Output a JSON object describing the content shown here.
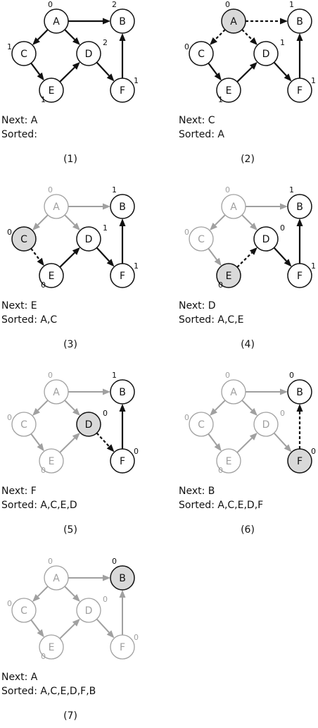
{
  "panels": [
    {
      "caption": "(1)",
      "next_label": "Next: A",
      "sorted_label": "Sorted:",
      "nodes": {
        "A": {
          "label": "A",
          "degree": "0",
          "style": "normal"
        },
        "B": {
          "label": "B",
          "degree": "2",
          "style": "normal"
        },
        "C": {
          "label": "C",
          "degree": "1",
          "style": "normal"
        },
        "D": {
          "label": "D",
          "degree": "2",
          "style": "normal"
        },
        "E": {
          "label": "E",
          "degree": "1",
          "style": "normal"
        },
        "F": {
          "label": "F",
          "degree": "1",
          "style": "normal"
        }
      },
      "edges": [
        {
          "from": "A",
          "to": "B",
          "style": "solid"
        },
        {
          "from": "A",
          "to": "C",
          "style": "solid"
        },
        {
          "from": "A",
          "to": "D",
          "style": "solid"
        },
        {
          "from": "C",
          "to": "E",
          "style": "solid"
        },
        {
          "from": "E",
          "to": "D",
          "style": "solid"
        },
        {
          "from": "D",
          "to": "F",
          "style": "solid"
        },
        {
          "from": "F",
          "to": "B",
          "style": "solid"
        }
      ]
    },
    {
      "caption": "(2)",
      "next_label": "Next: C",
      "sorted_label": "Sorted: A",
      "nodes": {
        "A": {
          "label": "A",
          "degree": "0",
          "style": "current"
        },
        "B": {
          "label": "B",
          "degree": "1",
          "style": "normal"
        },
        "C": {
          "label": "C",
          "degree": "0",
          "style": "normal"
        },
        "D": {
          "label": "D",
          "degree": "1",
          "style": "normal"
        },
        "E": {
          "label": "E",
          "degree": "1",
          "style": "normal"
        },
        "F": {
          "label": "F",
          "degree": "1",
          "style": "normal"
        }
      },
      "edges": [
        {
          "from": "A",
          "to": "B",
          "style": "dashed"
        },
        {
          "from": "A",
          "to": "C",
          "style": "dashed"
        },
        {
          "from": "A",
          "to": "D",
          "style": "dashed"
        },
        {
          "from": "C",
          "to": "E",
          "style": "solid"
        },
        {
          "from": "E",
          "to": "D",
          "style": "solid"
        },
        {
          "from": "D",
          "to": "F",
          "style": "solid"
        },
        {
          "from": "F",
          "to": "B",
          "style": "solid"
        }
      ]
    },
    {
      "caption": "(3)",
      "next_label": "Next: E",
      "sorted_label": "Sorted: A,C",
      "nodes": {
        "A": {
          "label": "A",
          "degree": "0",
          "style": "done"
        },
        "B": {
          "label": "B",
          "degree": "1",
          "style": "normal"
        },
        "C": {
          "label": "C",
          "degree": "0",
          "style": "current"
        },
        "D": {
          "label": "D",
          "degree": "1",
          "style": "normal"
        },
        "E": {
          "label": "E",
          "degree": "0",
          "style": "normal"
        },
        "F": {
          "label": "F",
          "degree": "1",
          "style": "normal"
        }
      },
      "edges": [
        {
          "from": "A",
          "to": "B",
          "style": "done"
        },
        {
          "from": "A",
          "to": "C",
          "style": "done"
        },
        {
          "from": "A",
          "to": "D",
          "style": "done"
        },
        {
          "from": "C",
          "to": "E",
          "style": "dashed"
        },
        {
          "from": "E",
          "to": "D",
          "style": "solid"
        },
        {
          "from": "D",
          "to": "F",
          "style": "solid"
        },
        {
          "from": "F",
          "to": "B",
          "style": "solid"
        }
      ]
    },
    {
      "caption": "(4)",
      "next_label": "Next: D",
      "sorted_label": "Sorted: A,C,E",
      "nodes": {
        "A": {
          "label": "A",
          "degree": "0",
          "style": "done"
        },
        "B": {
          "label": "B",
          "degree": "1",
          "style": "normal"
        },
        "C": {
          "label": "C",
          "degree": "0",
          "style": "done"
        },
        "D": {
          "label": "D",
          "degree": "0",
          "style": "normal"
        },
        "E": {
          "label": "E",
          "degree": "0",
          "style": "current"
        },
        "F": {
          "label": "F",
          "degree": "1",
          "style": "normal"
        }
      },
      "edges": [
        {
          "from": "A",
          "to": "B",
          "style": "done"
        },
        {
          "from": "A",
          "to": "C",
          "style": "done"
        },
        {
          "from": "A",
          "to": "D",
          "style": "done"
        },
        {
          "from": "C",
          "to": "E",
          "style": "done"
        },
        {
          "from": "E",
          "to": "D",
          "style": "dashed"
        },
        {
          "from": "D",
          "to": "F",
          "style": "solid"
        },
        {
          "from": "F",
          "to": "B",
          "style": "solid"
        }
      ]
    },
    {
      "caption": "(5)",
      "next_label": "Next: F",
      "sorted_label": "Sorted: A,C,E,D",
      "nodes": {
        "A": {
          "label": "A",
          "degree": "0",
          "style": "done"
        },
        "B": {
          "label": "B",
          "degree": "1",
          "style": "normal"
        },
        "C": {
          "label": "C",
          "degree": "0",
          "style": "done"
        },
        "D": {
          "label": "D",
          "degree": "0",
          "style": "current"
        },
        "E": {
          "label": "E",
          "degree": "0",
          "style": "done"
        },
        "F": {
          "label": "F",
          "degree": "0",
          "style": "normal"
        }
      },
      "edges": [
        {
          "from": "A",
          "to": "B",
          "style": "done"
        },
        {
          "from": "A",
          "to": "C",
          "style": "done"
        },
        {
          "from": "A",
          "to": "D",
          "style": "done"
        },
        {
          "from": "C",
          "to": "E",
          "style": "done"
        },
        {
          "from": "E",
          "to": "D",
          "style": "done"
        },
        {
          "from": "D",
          "to": "F",
          "style": "dashed"
        },
        {
          "from": "F",
          "to": "B",
          "style": "solid"
        }
      ]
    },
    {
      "caption": "(6)",
      "next_label": "Next: B",
      "sorted_label": "Sorted: A,C,E,D,F",
      "nodes": {
        "A": {
          "label": "A",
          "degree": "0",
          "style": "done"
        },
        "B": {
          "label": "B",
          "degree": "0",
          "style": "normal"
        },
        "C": {
          "label": "C",
          "degree": "0",
          "style": "done"
        },
        "D": {
          "label": "D",
          "degree": "0",
          "style": "done"
        },
        "E": {
          "label": "E",
          "degree": "0",
          "style": "done"
        },
        "F": {
          "label": "F",
          "degree": "0",
          "style": "current"
        }
      },
      "edges": [
        {
          "from": "A",
          "to": "B",
          "style": "done"
        },
        {
          "from": "A",
          "to": "C",
          "style": "done"
        },
        {
          "from": "A",
          "to": "D",
          "style": "done"
        },
        {
          "from": "C",
          "to": "E",
          "style": "done"
        },
        {
          "from": "E",
          "to": "D",
          "style": "done"
        },
        {
          "from": "D",
          "to": "F",
          "style": "done"
        },
        {
          "from": "F",
          "to": "B",
          "style": "dashed"
        }
      ]
    },
    {
      "caption": "(7)",
      "next_label": "Next: A",
      "sorted_label": "Sorted: A,C,E,D,F,B",
      "nodes": {
        "A": {
          "label": "A",
          "degree": "0",
          "style": "done"
        },
        "B": {
          "label": "B",
          "degree": "0",
          "style": "current"
        },
        "C": {
          "label": "C",
          "degree": "0",
          "style": "done"
        },
        "D": {
          "label": "D",
          "degree": "0",
          "style": "done"
        },
        "E": {
          "label": "E",
          "degree": "0",
          "style": "done"
        },
        "F": {
          "label": "F",
          "degree": "0",
          "style": "done"
        }
      },
      "edges": [
        {
          "from": "A",
          "to": "B",
          "style": "done"
        },
        {
          "from": "A",
          "to": "C",
          "style": "done"
        },
        {
          "from": "A",
          "to": "D",
          "style": "done"
        },
        {
          "from": "C",
          "to": "E",
          "style": "done"
        },
        {
          "from": "E",
          "to": "D",
          "style": "done"
        },
        {
          "from": "D",
          "to": "F",
          "style": "done"
        },
        {
          "from": "F",
          "to": "B",
          "style": "done"
        }
      ]
    }
  ],
  "colors": {
    "active": "#111111",
    "done": "#a0a0a0",
    "current_fill": "#d9d9d9",
    "node_fill": "#ffffff"
  }
}
